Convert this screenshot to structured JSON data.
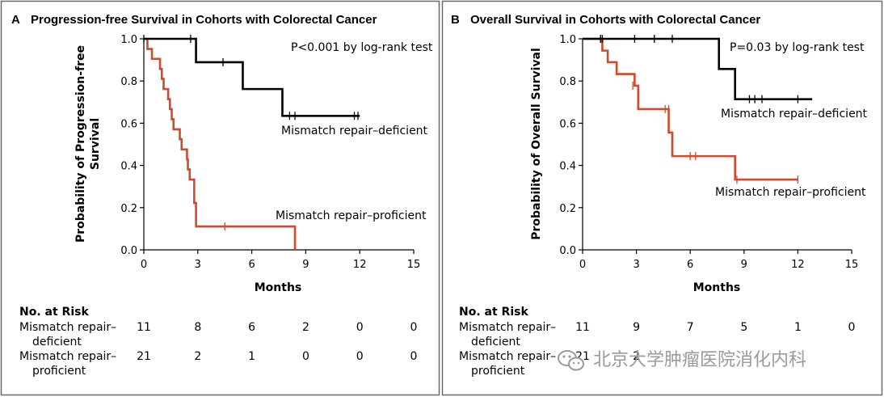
{
  "chart_data": [
    {
      "type": "line",
      "panel_letter": "A",
      "title": "Progression-free Survival in Cohorts with Colorectal Cancer",
      "xlabel": "Months",
      "ylabel_line1": "Probability of Progression-free",
      "ylabel_line2": "Survival",
      "xlim": [
        0,
        15
      ],
      "ylim": [
        0,
        1
      ],
      "xticks": [
        "0",
        "3",
        "6",
        "9",
        "12",
        "15"
      ],
      "yticks": [
        "0.0",
        "0.2",
        "0.4",
        "0.6",
        "0.8",
        "1.0"
      ],
      "annotation": "P<0.001 by log-rank test",
      "series": [
        {
          "name": "Mismatch repair–deficient",
          "color": "#000000",
          "steps": [
            [
              0,
              1.0
            ],
            [
              2.9,
              0.889
            ],
            [
              5.5,
              0.762
            ],
            [
              7.7,
              0.635
            ],
            [
              12.0,
              0.635
            ]
          ],
          "censored": [
            [
              0,
              1.0
            ],
            [
              2.6,
              1.0
            ],
            [
              4.4,
              0.889
            ],
            [
              8.1,
              0.635
            ],
            [
              8.4,
              0.635
            ],
            [
              11.7,
              0.635
            ],
            [
              11.9,
              0.635
            ]
          ]
        },
        {
          "name": "Mismatch repair–proficient",
          "color": "#d4482c",
          "steps": [
            [
              0,
              1.0
            ],
            [
              0.2,
              0.952
            ],
            [
              0.45,
              0.905
            ],
            [
              0.9,
              0.857
            ],
            [
              1.0,
              0.81
            ],
            [
              1.1,
              0.762
            ],
            [
              1.35,
              0.714
            ],
            [
              1.45,
              0.667
            ],
            [
              1.55,
              0.619
            ],
            [
              1.65,
              0.571
            ],
            [
              2.0,
              0.524
            ],
            [
              2.1,
              0.476
            ],
            [
              2.4,
              0.429
            ],
            [
              2.45,
              0.381
            ],
            [
              2.55,
              0.333
            ],
            [
              2.8,
              0.222
            ],
            [
              2.9,
              0.111
            ],
            [
              8.4,
              0.0
            ]
          ],
          "censored": [
            [
              4.5,
              0.111
            ]
          ]
        }
      ],
      "risk_table": {
        "heading": "No. at Risk",
        "rows": [
          {
            "label_line1": "Mismatch repair–",
            "label_line2": "deficient",
            "values": [
              "11",
              "8",
              "6",
              "2",
              "0",
              "0"
            ]
          },
          {
            "label_line1": "Mismatch repair–",
            "label_line2": "proficient",
            "values": [
              "21",
              "2",
              "1",
              "0",
              "0",
              "0"
            ]
          }
        ]
      }
    },
    {
      "type": "line",
      "panel_letter": "B",
      "title": "Overall Survival in Cohorts with Colorectal Cancer",
      "xlabel": "Months",
      "ylabel_line1": "Probability of Overall Survival",
      "ylabel_line2": "",
      "xlim": [
        0,
        15
      ],
      "ylim": [
        0,
        1
      ],
      "xticks": [
        "0",
        "3",
        "6",
        "9",
        "12",
        "15"
      ],
      "yticks": [
        "0.0",
        "0.2",
        "0.4",
        "0.6",
        "0.8",
        "1.0"
      ],
      "annotation": "P=0.03 by log-rank test",
      "series": [
        {
          "name": "Mismatch repair–deficient",
          "color": "#000000",
          "steps": [
            [
              0,
              1.0
            ],
            [
              7.6,
              0.857
            ],
            [
              8.5,
              0.714
            ],
            [
              12.8,
              0.714
            ]
          ],
          "censored": [
            [
              1.0,
              1.0
            ],
            [
              1.1,
              1.0
            ],
            [
              2.9,
              1.0
            ],
            [
              4.0,
              1.0
            ],
            [
              5.0,
              1.0
            ],
            [
              9.3,
              0.714
            ],
            [
              9.6,
              0.714
            ],
            [
              10.0,
              0.714
            ],
            [
              12.0,
              0.714
            ]
          ]
        },
        {
          "name": "Mismatch repair–proficient",
          "color": "#d4482c",
          "steps": [
            [
              0,
              1.0
            ],
            [
              1.1,
              0.944
            ],
            [
              1.4,
              0.889
            ],
            [
              1.9,
              0.833
            ],
            [
              2.9,
              0.778
            ],
            [
              3.1,
              0.667
            ],
            [
              4.8,
              0.556
            ],
            [
              5.0,
              0.444
            ],
            [
              8.5,
              0.333
            ],
            [
              12.0,
              0.333
            ]
          ],
          "censored": [
            [
              1.0,
              1.0
            ],
            [
              2.8,
              0.778
            ],
            [
              4.6,
              0.667
            ],
            [
              4.8,
              0.667
            ],
            [
              6.0,
              0.444
            ],
            [
              6.3,
              0.444
            ],
            [
              8.6,
              0.333
            ],
            [
              12.0,
              0.333
            ]
          ]
        }
      ],
      "risk_table": {
        "heading": "No. at Risk",
        "rows": [
          {
            "label_line1": "Mismatch repair–",
            "label_line2": "deficient",
            "values": [
              "11",
              "9",
              "7",
              "5",
              "1",
              "0"
            ]
          },
          {
            "label_line1": "Mismatch repair–",
            "label_line2": "proficient",
            "values": [
              "21",
              "2",
              "",
              "",
              "",
              ""
            ]
          }
        ]
      }
    }
  ],
  "watermark": {
    "text": "北京大学肿瘤医院消化内科",
    "icon": "wechat-icon"
  }
}
